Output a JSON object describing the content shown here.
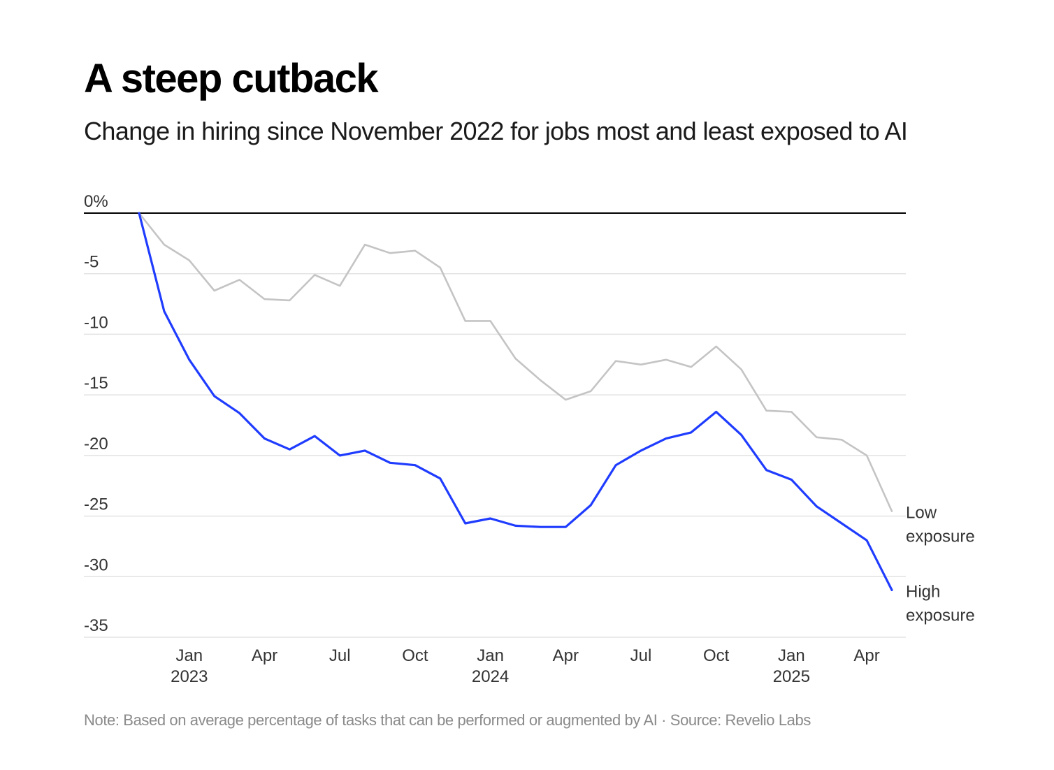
{
  "title": "A steep cutback",
  "subtitle": "Change in hiring since November 2022 for jobs most and least exposed to AI",
  "note": "Note: Based on average percentage of tasks that can be performed or augmented by AI · Source: Revelio Labs",
  "colors": {
    "high_exposure": "#1f3cff",
    "low_exposure": "#c4c4c4",
    "zero_line": "#000000",
    "gridline": "#e3e3e3"
  },
  "chart_data": {
    "type": "line",
    "title": "A steep cutback",
    "subtitle": "Change in hiring since November 2022 for jobs most and least exposed to AI",
    "x": [
      "2022-11",
      "2022-12",
      "2023-01",
      "2023-02",
      "2023-03",
      "2023-04",
      "2023-05",
      "2023-06",
      "2023-07",
      "2023-08",
      "2023-09",
      "2023-10",
      "2023-11",
      "2023-12",
      "2024-01",
      "2024-02",
      "2024-03",
      "2024-04",
      "2024-05",
      "2024-06",
      "2024-07",
      "2024-08",
      "2024-09",
      "2024-10",
      "2024-11",
      "2024-12",
      "2025-01",
      "2025-02",
      "2025-03",
      "2025-04",
      "2025-05"
    ],
    "series": [
      {
        "name": "Low exposure",
        "label_lines": [
          "Low",
          "exposure"
        ],
        "color_key": "low_exposure",
        "values": [
          0,
          -2.6,
          -3.9,
          -6.4,
          -5.5,
          -7.1,
          -7.2,
          -5.1,
          -6.0,
          -2.6,
          -3.3,
          -3.1,
          -4.5,
          -8.9,
          -8.9,
          -12.0,
          -13.8,
          -15.4,
          -14.7,
          -12.2,
          -12.5,
          -12.1,
          -12.7,
          -11.0,
          -12.9,
          -16.3,
          -16.4,
          -18.5,
          -18.7,
          -20.0,
          -24.6
        ]
      },
      {
        "name": "High exposure",
        "label_lines": [
          "High",
          "exposure"
        ],
        "color_key": "high_exposure",
        "values": [
          0,
          -8.1,
          -12.1,
          -15.1,
          -16.5,
          -18.6,
          -19.5,
          -18.4,
          -20.0,
          -19.6,
          -20.6,
          -20.8,
          -21.9,
          -25.6,
          -25.2,
          -25.8,
          -25.9,
          -25.9,
          -24.1,
          -20.8,
          -19.6,
          -18.6,
          -18.1,
          -16.4,
          -18.3,
          -21.2,
          -22.0,
          -24.2,
          -25.6,
          -27.0,
          -31.1
        ]
      }
    ],
    "y_ticks": [
      "0%",
      "-5",
      "-10",
      "-15",
      "-20",
      "-25",
      "-30",
      "-35"
    ],
    "y_tick_values": [
      0,
      -5,
      -10,
      -15,
      -20,
      -25,
      -30,
      -35
    ],
    "ylim": [
      -35,
      0
    ],
    "x_ticks": [
      {
        "month": "2023-01",
        "label": "Jan",
        "year": "2023"
      },
      {
        "month": "2023-04",
        "label": "Apr",
        "year": ""
      },
      {
        "month": "2023-07",
        "label": "Jul",
        "year": ""
      },
      {
        "month": "2023-10",
        "label": "Oct",
        "year": ""
      },
      {
        "month": "2024-01",
        "label": "Jan",
        "year": "2024"
      },
      {
        "month": "2024-04",
        "label": "Apr",
        "year": ""
      },
      {
        "month": "2024-07",
        "label": "Jul",
        "year": ""
      },
      {
        "month": "2024-10",
        "label": "Oct",
        "year": ""
      },
      {
        "month": "2025-01",
        "label": "Jan",
        "year": "2025"
      },
      {
        "month": "2025-04",
        "label": "Apr",
        "year": ""
      }
    ],
    "xlim": [
      "2022-11",
      "2025-05"
    ],
    "grid": true,
    "legend": "direct labels at line ends (right)"
  }
}
